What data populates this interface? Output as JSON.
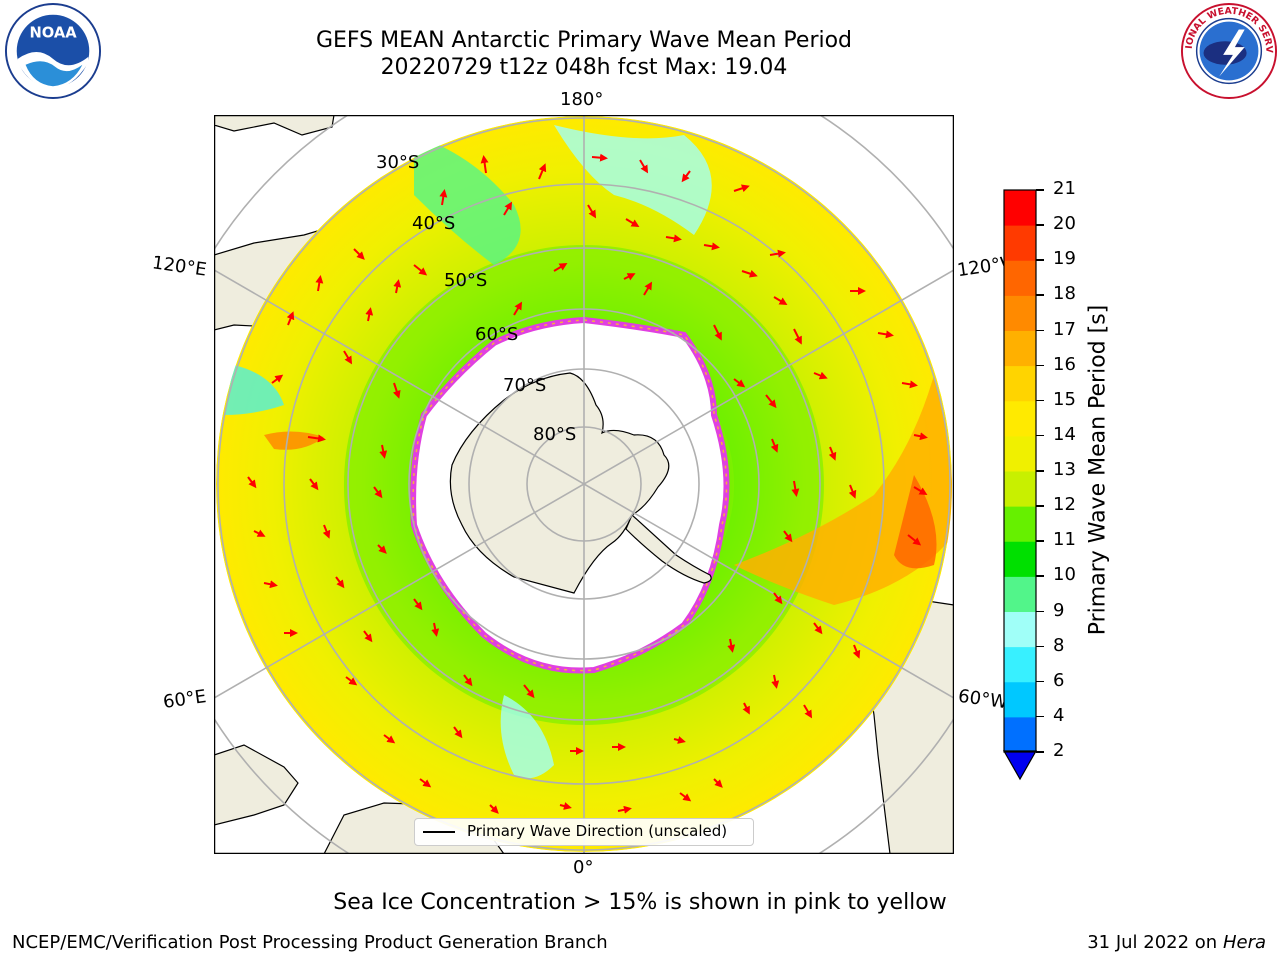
{
  "title": {
    "line1": "GEFS MEAN Antarctic Primary Wave Mean Period",
    "line2": "20220729 t12z 048h fcst   Max: 19.04"
  },
  "map": {
    "projection": "south-polar-stereographic",
    "lon_labels": {
      "top": "180°",
      "bottom": "0°",
      "upper_left": "120°E",
      "upper_right": "120°W",
      "lower_left": "60°E",
      "lower_right": "60°W"
    },
    "lat_labels": [
      "30°S",
      "40°S",
      "50°S",
      "60°S",
      "70°S",
      "80°S"
    ],
    "colors": {
      "land": "#efedde",
      "sea_ice_interior": "#ffffff",
      "sea_ice_edge": "#e040e0",
      "sea_ice_edge_outer": "#f5b040",
      "arrows": "#ff0000",
      "gridlines": "#b0b0b0"
    }
  },
  "colorbar": {
    "label": "Primary Wave Mean Period [s]",
    "ticks": [
      "2",
      "4",
      "6",
      "8",
      "9",
      "10",
      "11",
      "12",
      "13",
      "14",
      "15",
      "16",
      "17",
      "18",
      "19",
      "20",
      "21"
    ],
    "colors": [
      "#0070ff",
      "#00c8ff",
      "#38f0ff",
      "#a0fff8",
      "#52f58a",
      "#00e000",
      "#66f000",
      "#c8f000",
      "#f0f000",
      "#ffea00",
      "#ffd400",
      "#ffb000",
      "#ff8a00",
      "#ff6600",
      "#ff3a00",
      "#ff0000"
    ],
    "extend_color": "#0000f0"
  },
  "legend": {
    "label": "Primary Wave Direction (unscaled)"
  },
  "note": "Sea Ice Concentration > 15% is shown in pink to yellow",
  "footer": {
    "left": "NCEP/EMC/Verification Post Processing Product Generation Branch",
    "right_date": "31 Jul 2022 on ",
    "right_host": "Hera"
  },
  "logos": {
    "noaa_text": "NOAA",
    "nws_text": "NATIONAL WEATHER SERVICE"
  }
}
